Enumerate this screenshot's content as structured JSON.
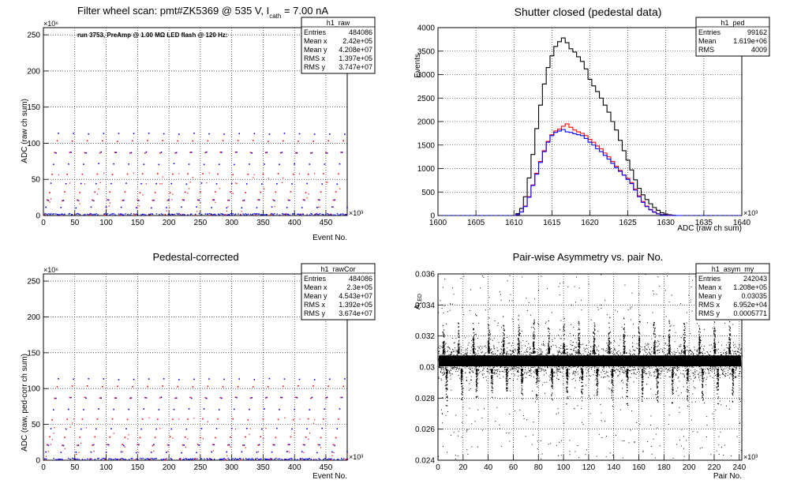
{
  "panels": [
    {
      "id": "raw",
      "title": "Filter wheel scan: pmt#ZK5369 @   535 V, I",
      "title_sub": "cath",
      "title_tail": " = 7.00 nA",
      "annotation": "run 3753, PreAmp @ 1.00 MΩ LED flash @  120 Hz:",
      "stats": {
        "name": "h1_raw",
        "rows": [
          [
            "Entries",
            "484086"
          ],
          [
            "Mean x",
            "2.42e+05"
          ],
          [
            "Mean y",
            "4.208e+07"
          ],
          [
            "RMS x",
            "1.397e+05"
          ],
          [
            "RMS y",
            "3.747e+07"
          ]
        ]
      }
    },
    {
      "id": "ped",
      "title": "Shutter closed (pedestal data)",
      "stats": {
        "name": "h1_ped",
        "rows": [
          [
            "Entries",
            "99162"
          ],
          [
            "Mean",
            "1.619e+06"
          ],
          [
            "RMS",
            "4009"
          ]
        ]
      }
    },
    {
      "id": "cor",
      "title": "Pedestal-corrected",
      "stats": {
        "name": "h1_rawCor",
        "rows": [
          [
            "Entries",
            "484086"
          ],
          [
            "Mean x",
            "2.3e+05"
          ],
          [
            "Mean y",
            "4.543e+07"
          ],
          [
            "RMS x",
            "1.392e+05"
          ],
          [
            "RMS y",
            "3.674e+07"
          ]
        ]
      }
    },
    {
      "id": "asym",
      "title": "Pair-wise Asymmetry vs. pair No.",
      "stats": {
        "name": "h1_asym_my",
        "rows": [
          [
            "Entries",
            "242043"
          ],
          [
            "Mean x",
            "1.208e+05"
          ],
          [
            "Mean y",
            "0.03035"
          ],
          [
            "RMS x",
            "6.952e+04"
          ],
          [
            "RMS y",
            "0.0005771"
          ]
        ]
      }
    }
  ],
  "chart_data": [
    {
      "type": "scatter",
      "title": "Filter wheel scan: pmt#ZK5369 @   535 V, I cath = 7.00 nA",
      "xlabel": "Event No.",
      "x_exponent": "×10³",
      "ylabel": "ADC (raw ch sum)",
      "y_exponent": "×10⁶",
      "xlim": [
        0,
        484
      ],
      "ylim": [
        0,
        260
      ],
      "x_ticks": [
        0,
        50,
        100,
        150,
        200,
        250,
        300,
        350,
        400,
        450
      ],
      "y_ticks": [
        0,
        50,
        100,
        150,
        200,
        250
      ],
      "step_levels": [
        2,
        12,
        22,
        33,
        45,
        58,
        72,
        88,
        104,
        114
      ],
      "colors": [
        "#ff0000",
        "#0000ff"
      ],
      "grid": true
    },
    {
      "type": "line",
      "title": "Shutter closed (pedestal data)",
      "xlabel": "ADC (raw ch sum)",
      "x_exponent": "×10³",
      "ylabel": "Events",
      "xlim": [
        1600,
        1640
      ],
      "ylim": [
        0,
        4000
      ],
      "x_ticks": [
        1600,
        1605,
        1610,
        1615,
        1620,
        1625,
        1630,
        1635,
        1640
      ],
      "y_ticks": [
        0,
        500,
        1000,
        1500,
        2000,
        2500,
        3000,
        3500,
        4000
      ],
      "x": [
        1610.5,
        1611,
        1611.5,
        1612,
        1612.5,
        1613,
        1613.5,
        1614,
        1614.5,
        1615,
        1615.5,
        1616,
        1616.5,
        1617,
        1617.5,
        1618,
        1618.5,
        1619,
        1619.5,
        1620,
        1620.5,
        1621,
        1621.5,
        1622,
        1622.5,
        1623,
        1623.5,
        1624,
        1624.5,
        1625,
        1625.5,
        1626,
        1626.5,
        1627,
        1627.5,
        1628,
        1628.5,
        1629,
        1629.5,
        1630,
        1630.5,
        1631,
        1631.5,
        1632
      ],
      "series": [
        {
          "color": "#000000",
          "values": [
            40,
            150,
            400,
            800,
            1300,
            1850,
            2350,
            2800,
            3150,
            3400,
            3600,
            3700,
            3780,
            3680,
            3550,
            3480,
            3380,
            3280,
            3120,
            2900,
            2760,
            2640,
            2500,
            2350,
            2200,
            2000,
            1820,
            1600,
            1380,
            1180,
            970,
            760,
            580,
            440,
            340,
            250,
            170,
            110,
            60,
            30,
            15,
            5,
            0,
            0
          ]
        },
        {
          "color": "#ff0000",
          "values": [
            20,
            80,
            200,
            400,
            650,
            900,
            1150,
            1380,
            1580,
            1720,
            1800,
            1840,
            1900,
            1950,
            1880,
            1820,
            1780,
            1750,
            1700,
            1620,
            1560,
            1480,
            1420,
            1330,
            1250,
            1150,
            1050,
            960,
            860,
            790,
            700,
            560,
            420,
            300,
            200,
            130,
            80,
            40,
            20,
            10,
            5,
            0,
            0,
            0
          ]
        },
        {
          "color": "#0000ff",
          "values": [
            20,
            75,
            190,
            390,
            640,
            880,
            1130,
            1360,
            1560,
            1700,
            1770,
            1800,
            1830,
            1780,
            1770,
            1740,
            1720,
            1700,
            1640,
            1560,
            1500,
            1420,
            1360,
            1280,
            1200,
            1110,
            1020,
            940,
            860,
            770,
            680,
            540,
            400,
            280,
            190,
            120,
            70,
            35,
            15,
            5,
            0,
            0,
            0,
            0
          ]
        }
      ],
      "grid": true
    },
    {
      "type": "scatter",
      "title": "Pedestal-corrected",
      "xlabel": "Event No.",
      "x_exponent": "×10³",
      "ylabel": "ADC (raw, ped-corr ch sum)",
      "y_exponent": "×10⁶",
      "xlim": [
        0,
        484
      ],
      "ylim": [
        0,
        260
      ],
      "x_ticks": [
        0,
        50,
        100,
        150,
        200,
        250,
        300,
        350,
        400,
        450
      ],
      "y_ticks": [
        0,
        50,
        100,
        150,
        200,
        250
      ],
      "step_levels": [
        2,
        12,
        22,
        33,
        45,
        58,
        72,
        88,
        104,
        114
      ],
      "colors": [
        "#ff0000",
        "#0000ff"
      ],
      "grid": true
    },
    {
      "type": "scatter",
      "title": "Pair-wise Asymmetry vs. pair No.",
      "xlabel": "Pair No.",
      "x_exponent": "×10³",
      "ylabel": "A_LED",
      "xlim": [
        0,
        242
      ],
      "ylim": [
        0.024,
        0.036
      ],
      "x_ticks": [
        0,
        20,
        40,
        60,
        80,
        100,
        120,
        140,
        160,
        180,
        200,
        220,
        240
      ],
      "y_ticks": [
        0.024,
        0.026,
        0.028,
        0.03,
        0.032,
        0.034,
        0.036
      ],
      "band_center": 0.0304,
      "band_halfwidth": 0.0005,
      "spike_period": 12,
      "colors": [
        "#000000"
      ],
      "grid": true
    }
  ]
}
